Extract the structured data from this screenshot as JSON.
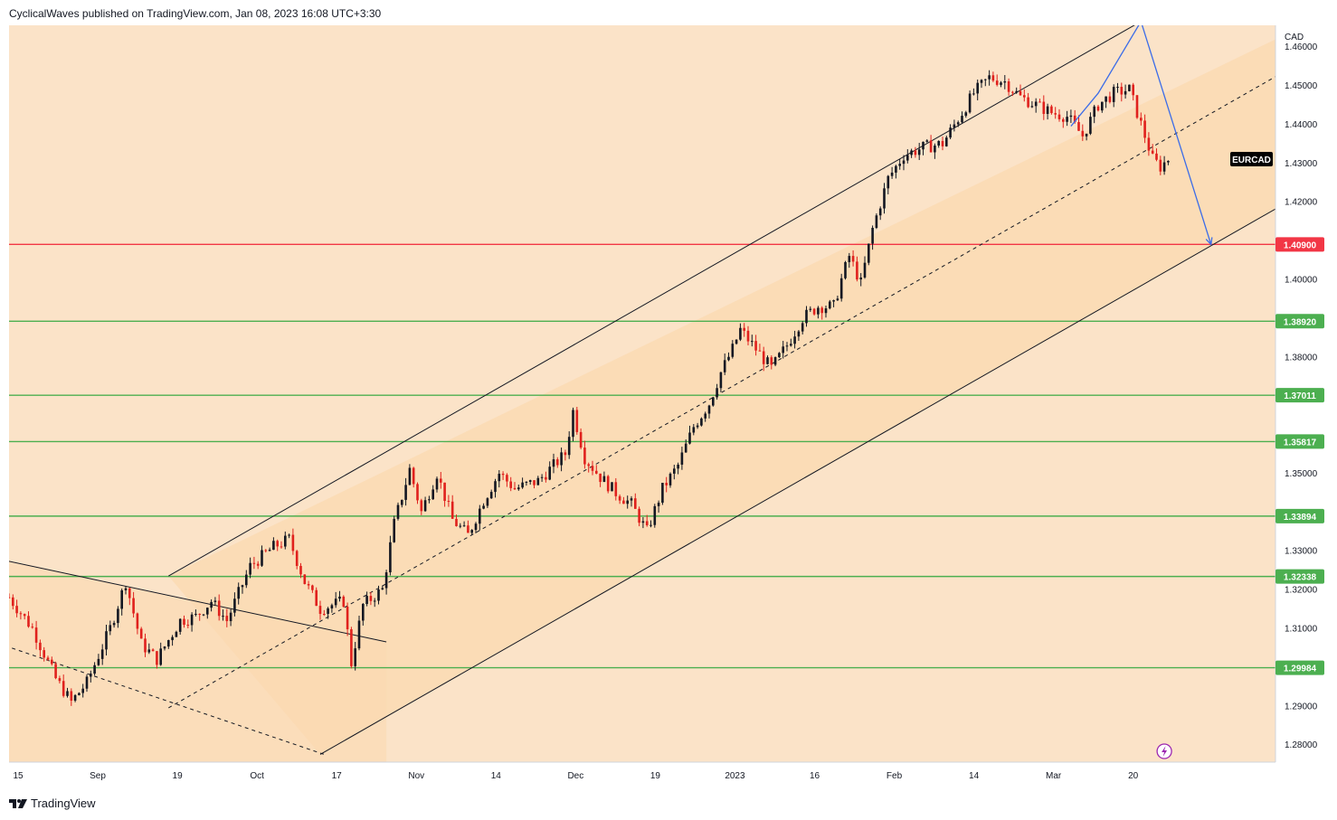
{
  "header": {
    "publisher_line": "CyclicalWaves published on TradingView.com, Jan 08, 2023 16:08 UTC+3:30"
  },
  "footer": {
    "brand": "TradingView",
    "brand_icon": "tradingview-logo-icon"
  },
  "colors": {
    "background": "#fbe3c8",
    "channel_fill": "#fbd9b0",
    "bull": "#131722",
    "bear": "#e0211d",
    "resistance_line": "#f23645",
    "support_line": "#4caf50",
    "projection": "#3b6ce8",
    "symbol_tag_bg": "#000000"
  },
  "chart_data": {
    "type": "candlestick",
    "symbol": "EURCAD",
    "currency": "CAD",
    "ylim": [
      1.2755,
      1.4655
    ],
    "y_ticks": [
      "1.46000",
      "1.45000",
      "1.44000",
      "1.43000",
      "1.42000",
      "1.40000",
      "1.38000",
      "1.35000",
      "1.33000",
      "1.32000",
      "1.31000",
      "1.29000",
      "1.28000"
    ],
    "x_ticks": [
      "15",
      "Sep",
      "19",
      "Oct",
      "17",
      "Nov",
      "14",
      "Dec",
      "19",
      "2023",
      "16",
      "Feb",
      "14",
      "Mar",
      "20"
    ],
    "last_price_tag": "EURCAD",
    "horizontal_levels": [
      {
        "value": 1.409,
        "label": "1.40900",
        "kind": "resistance"
      },
      {
        "value": 1.3892,
        "label": "1.38920",
        "kind": "support"
      },
      {
        "value": 1.37011,
        "label": "1.37011",
        "kind": "support"
      },
      {
        "value": 1.35817,
        "label": "1.35817",
        "kind": "support"
      },
      {
        "value": 1.33894,
        "label": "1.33894",
        "kind": "support"
      },
      {
        "value": 1.32338,
        "label": "1.32338",
        "kind": "support"
      },
      {
        "value": 1.29984,
        "label": "1.29984",
        "kind": "support"
      }
    ],
    "close_path": [
      [
        0,
        1.318
      ],
      [
        6,
        1.31
      ],
      [
        12,
        1.297
      ],
      [
        16,
        1.291
      ],
      [
        20,
        1.296
      ],
      [
        26,
        1.31
      ],
      [
        30,
        1.322
      ],
      [
        34,
        1.306
      ],
      [
        38,
        1.302
      ],
      [
        44,
        1.312
      ],
      [
        48,
        1.313
      ],
      [
        52,
        1.317
      ],
      [
        56,
        1.312
      ],
      [
        62,
        1.326
      ],
      [
        68,
        1.331
      ],
      [
        72,
        1.333
      ],
      [
        76,
        1.322
      ],
      [
        80,
        1.315
      ],
      [
        86,
        1.317
      ],
      [
        88,
        1.301
      ],
      [
        91,
        1.316
      ],
      [
        96,
        1.32
      ],
      [
        99,
        1.337
      ],
      [
        103,
        1.351
      ],
      [
        106,
        1.34
      ],
      [
        110,
        1.35
      ],
      [
        114,
        1.338
      ],
      [
        118,
        1.334
      ],
      [
        122,
        1.343
      ],
      [
        126,
        1.35
      ],
      [
        130,
        1.346
      ],
      [
        136,
        1.348
      ],
      [
        140,
        1.352
      ],
      [
        143,
        1.355
      ],
      [
        145,
        1.366
      ],
      [
        148,
        1.354
      ],
      [
        152,
        1.349
      ],
      [
        156,
        1.345
      ],
      [
        160,
        1.342
      ],
      [
        164,
        1.335
      ],
      [
        168,
        1.346
      ],
      [
        172,
        1.352
      ],
      [
        176,
        1.362
      ],
      [
        180,
        1.368
      ],
      [
        183,
        1.376
      ],
      [
        186,
        1.382
      ],
      [
        188,
        1.387
      ],
      [
        192,
        1.382
      ],
      [
        196,
        1.377
      ],
      [
        200,
        1.383
      ],
      [
        204,
        1.39
      ],
      [
        208,
        1.393
      ],
      [
        212,
        1.393
      ],
      [
        214,
        1.4
      ],
      [
        216,
        1.406
      ],
      [
        219,
        1.399
      ],
      [
        222,
        1.413
      ],
      [
        226,
        1.426
      ],
      [
        230,
        1.432
      ],
      [
        235,
        1.434
      ],
      [
        240,
        1.435
      ],
      [
        245,
        1.443
      ],
      [
        248,
        1.448
      ],
      [
        252,
        1.452
      ],
      [
        256,
        1.451
      ],
      [
        260,
        1.447
      ],
      [
        264,
        1.445
      ],
      [
        268,
        1.443
      ],
      [
        272,
        1.442
      ],
      [
        276,
        1.437
      ],
      [
        280,
        1.445
      ],
      [
        284,
        1.448
      ],
      [
        288,
        1.449
      ],
      [
        292,
        1.437
      ],
      [
        294,
        1.431
      ],
      [
        296,
        1.429
      ],
      [
        298,
        1.431
      ]
    ],
    "channel": {
      "upper": [
        [
          41,
          1.3235
        ],
        [
          291,
          1.4665
        ]
      ],
      "middle": [
        [
          41,
          1.2895
        ],
        [
          333,
          1.4565
        ]
      ],
      "lower": [
        [
          80,
          1.2775
        ],
        [
          333,
          1.4224
        ]
      ],
      "fill_end": 333
    },
    "prior_channel": {
      "upper": [
        [
          -1,
          1.3275
        ],
        [
          97,
          1.3065
        ]
      ],
      "lower": [
        [
          -1,
          1.3055
        ],
        [
          81,
          1.2775
        ]
      ],
      "fill_end": 97
    },
    "projection_path": [
      [
        273,
        1.4395
      ],
      [
        280,
        1.448
      ],
      [
        291,
        1.4665
      ],
      [
        309,
        1.409
      ]
    ],
    "dividends_marker_day": 297
  }
}
